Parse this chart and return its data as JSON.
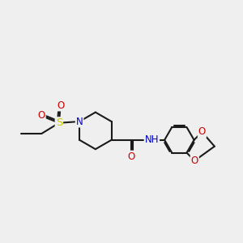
{
  "bg_color": "#efefef",
  "bond_color": "#1a1a1a",
  "bond_width": 1.5,
  "colors": {
    "N": "#0000cc",
    "O": "#cc0000",
    "S": "#cccc00",
    "NH": "#0000cc"
  },
  "font_size": 8.5
}
